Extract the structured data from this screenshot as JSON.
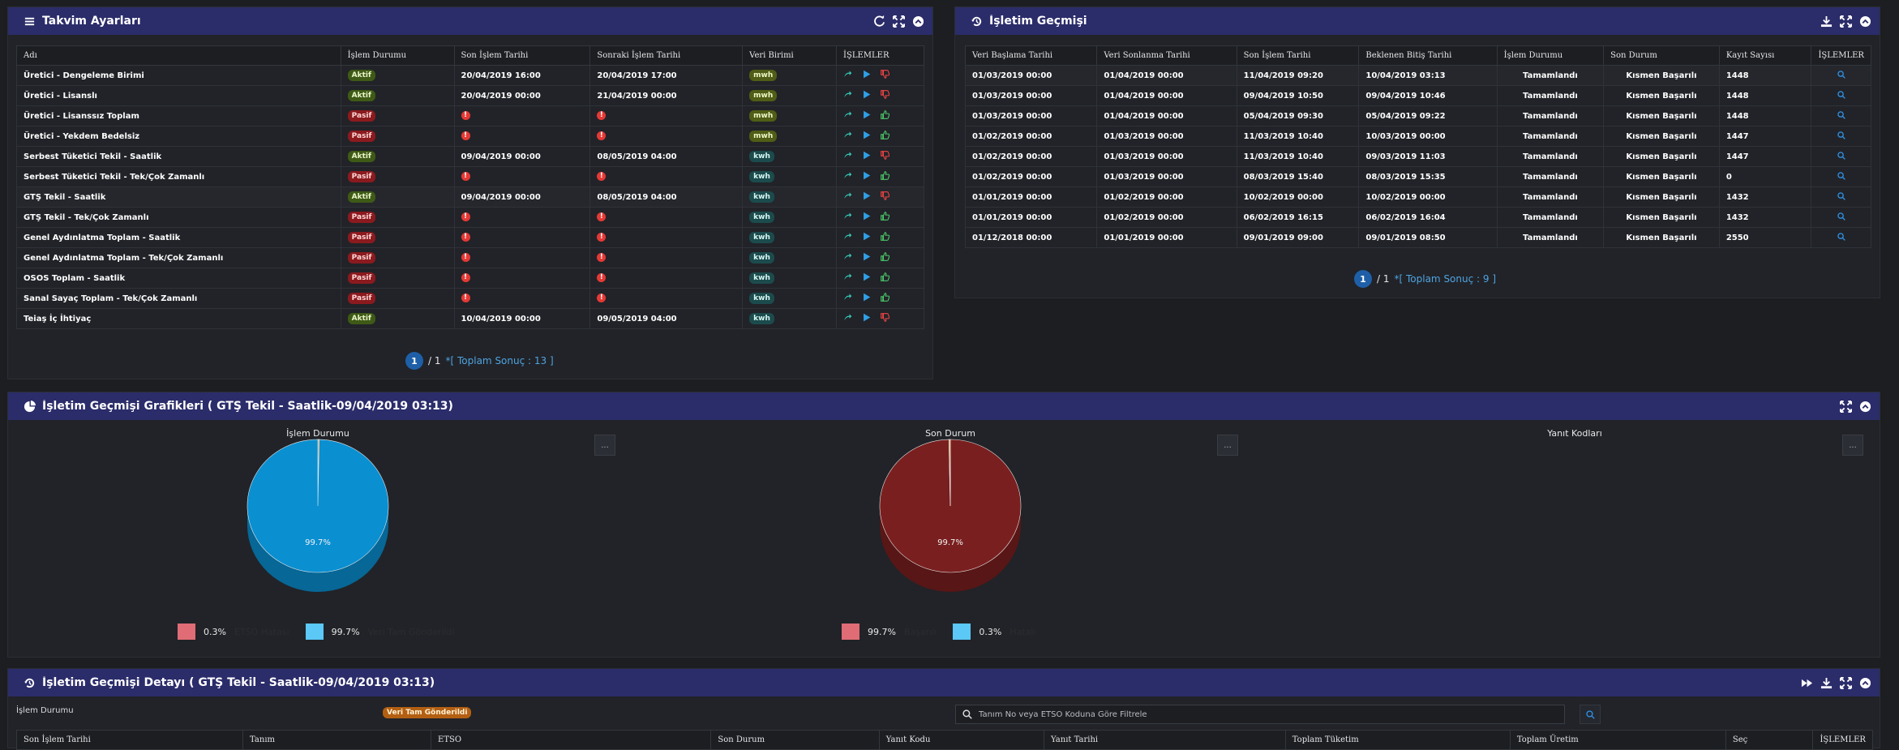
{
  "takvim": {
    "title": "Takvim Ayarları",
    "headers": [
      "Adı",
      "İşlem Durumu",
      "Son İşlem Tarihi",
      "Sonraki İşlem Tarihi",
      "Veri Birimi",
      "İŞLEMLER"
    ],
    "rows": [
      {
        "name": "Üretici - Dengeleme Birimi",
        "status": "Aktif",
        "last": "20/04/2019 16:00",
        "next": "20/04/2019 17:00",
        "unit": "mwh",
        "like": "down"
      },
      {
        "name": "Üretici - Lisanslı",
        "status": "Aktif",
        "last": "20/04/2019 00:00",
        "next": "21/04/2019 00:00",
        "unit": "mwh",
        "like": "down"
      },
      {
        "name": "Üretici - Lisanssız Toplam",
        "status": "Pasif",
        "last": "!",
        "next": "!",
        "unit": "mwh",
        "like": "up"
      },
      {
        "name": "Üretici - Yekdem Bedelsiz",
        "status": "Pasif",
        "last": "!",
        "next": "!",
        "unit": "mwh",
        "like": "up"
      },
      {
        "name": "Serbest Tüketici Tekil - Saatlik",
        "status": "Aktif",
        "last": "09/04/2019 00:00",
        "next": "08/05/2019 04:00",
        "unit": "kwh",
        "like": "down"
      },
      {
        "name": "Serbest Tüketici Tekil - Tek/Çok Zamanlı",
        "status": "Pasif",
        "last": "!",
        "next": "!",
        "unit": "kwh",
        "like": "up"
      },
      {
        "name": "GTŞ Tekil - Saatlik",
        "status": "Aktif",
        "last": "09/04/2019 00:00",
        "next": "08/05/2019 04:00",
        "unit": "kwh",
        "like": "down"
      },
      {
        "name": "GTŞ Tekil - Tek/Çok Zamanlı",
        "status": "Pasif",
        "last": "!",
        "next": "!",
        "unit": "kwh",
        "like": "up"
      },
      {
        "name": "Genel Aydınlatma Toplam - Saatlik",
        "status": "Pasif",
        "last": "!",
        "next": "!",
        "unit": "kwh",
        "like": "up"
      },
      {
        "name": "Genel Aydınlatma Toplam - Tek/Çok Zamanlı",
        "status": "Pasif",
        "last": "!",
        "next": "!",
        "unit": "kwh",
        "like": "up"
      },
      {
        "name": "OSOS Toplam - Saatlik",
        "status": "Pasif",
        "last": "!",
        "next": "!",
        "unit": "kwh",
        "like": "up"
      },
      {
        "name": "Sanal Sayaç Toplam - Tek/Çok Zamanlı",
        "status": "Pasif",
        "last": "!",
        "next": "!",
        "unit": "kwh",
        "like": "up"
      },
      {
        "name": "Teiaş İç İhtiyaç",
        "status": "Aktif",
        "last": "10/04/2019 00:00",
        "next": "09/05/2019 04:00",
        "unit": "kwh",
        "like": "down"
      }
    ],
    "pager": {
      "page": "1",
      "of": "/ 1",
      "total": "*[ Toplam Sonuç : 13 ]"
    }
  },
  "gecmis": {
    "title": "İşletim Geçmişi",
    "headers": [
      "Veri Başlama Tarihi",
      "Veri Sonlanma Tarihi",
      "Son İşlem Tarihi",
      "Beklenen Bitiş Tarihi",
      "İşlem Durumu",
      "Son Durum",
      "Kayıt Sayısı",
      "İŞLEMLER"
    ],
    "rows": [
      [
        "01/03/2019 00:00",
        "01/04/2019 00:00",
        "11/04/2019 09:20",
        "10/04/2019 03:13",
        "Tamamlandı",
        "Kısmen Başarılı",
        "1448"
      ],
      [
        "01/03/2019 00:00",
        "01/04/2019 00:00",
        "09/04/2019 10:50",
        "09/04/2019 10:46",
        "Tamamlandı",
        "Kısmen Başarılı",
        "1448"
      ],
      [
        "01/03/2019 00:00",
        "01/04/2019 00:00",
        "05/04/2019 09:30",
        "05/04/2019 09:22",
        "Tamamlandı",
        "Kısmen Başarılı",
        "1448"
      ],
      [
        "01/02/2019 00:00",
        "01/03/2019 00:00",
        "11/03/2019 10:40",
        "10/03/2019 00:00",
        "Tamamlandı",
        "Kısmen Başarılı",
        "1447"
      ],
      [
        "01/02/2019 00:00",
        "01/03/2019 00:00",
        "11/03/2019 10:40",
        "09/03/2019 11:03",
        "Tamamlandı",
        "Kısmen Başarılı",
        "1447"
      ],
      [
        "01/02/2019 00:00",
        "01/03/2019 00:00",
        "08/03/2019 15:40",
        "08/03/2019 15:35",
        "Tamamlandı",
        "Kısmen Başarılı",
        "0"
      ],
      [
        "01/01/2019 00:00",
        "01/02/2019 00:00",
        "10/02/2019 00:00",
        "10/02/2019 00:00",
        "Tamamlandı",
        "Kısmen Başarılı",
        "1432"
      ],
      [
        "01/01/2019 00:00",
        "01/02/2019 00:00",
        "06/02/2019 16:15",
        "06/02/2019 16:04",
        "Tamamlandı",
        "Kısmen Başarılı",
        "1432"
      ],
      [
        "01/12/2018 00:00",
        "01/01/2019 00:00",
        "09/01/2019 09:00",
        "09/01/2019 08:50",
        "Tamamlandı",
        "Kısmen Başarılı",
        "2550"
      ]
    ],
    "pager": {
      "page": "1",
      "of": "/ 1",
      "total": "*[ Toplam Sonuç : 9 ]"
    }
  },
  "grafik": {
    "title": "İşletim Geçmişi Grafikleri ( GTŞ Tekil - Saatlik-09/04/2019 03:13)",
    "btn": "...",
    "chart1": {
      "title": "İşlem Durumu"
    },
    "chart2": {
      "title": "Son Durum"
    },
    "chart3": {
      "title": "Yanıt Kodları"
    }
  },
  "chart_data": [
    {
      "type": "pie",
      "title": "İşlem Durumu",
      "labels": [
        "ETSO Hatası",
        "Veri Tam Gönderildi"
      ],
      "values": [
        0.3,
        99.7
      ],
      "value_labels": [
        "0.3%",
        "99.7%"
      ],
      "colors": [
        "#e06c75",
        "#5bc8f5"
      ],
      "slice_colors": [
        "#d98a2b",
        "#0a8fd1"
      ],
      "legend": "bottom"
    },
    {
      "type": "pie",
      "title": "Son Durum",
      "labels": [
        "Başarılı",
        "Hatalı"
      ],
      "values": [
        99.7,
        0.3
      ],
      "value_labels": [
        "99.7%",
        "0.3%"
      ],
      "colors": [
        "#e06c75",
        "#5bc8f5"
      ],
      "slice_colors": [
        "#7a1f1f",
        "#d98a2b"
      ],
      "legend": "bottom"
    }
  ],
  "detay": {
    "title": "İşletim Geçmişi Detayı ( GTŞ Tekil - Saatlik-09/04/2019 03:13)",
    "filter_label": "İşlem Durumu",
    "filter_badge": "Veri Tam Gönderildi",
    "search_placeholder": "Tanım No veya ETSO Koduna Göre Filtrele",
    "headers": [
      "Son İşlem Tarihi",
      "Tanım",
      "ETSO",
      "Son Durum",
      "Yanıt Kodu",
      "Yanıt Tarihi",
      "Toplam Tüketim",
      "Toplam Üretim",
      "Seç",
      "İŞLEMLER"
    ]
  },
  "colors": {
    "header_bg": "#2b2c6a",
    "panel_bg": "#212328",
    "page_bg": "#1c1e22"
  }
}
